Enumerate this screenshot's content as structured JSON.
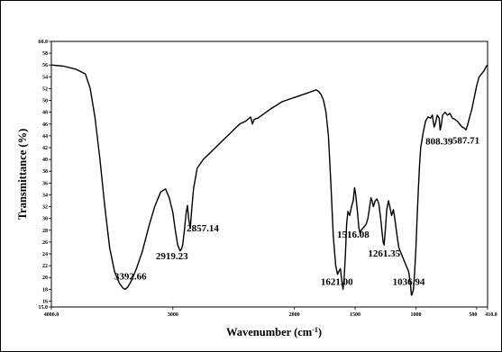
{
  "chart_data": {
    "type": "line",
    "title": "",
    "xlabel": "Wavenumber (cm",
    "xlabel_sup": "-1",
    "xlabel_close": ")",
    "ylabel": "Transmittance (%)",
    "xlim": [
      4000.0,
      410.0
    ],
    "ylim": [
      15.0,
      60.0
    ],
    "x_ticks": [
      {
        "value": 4000,
        "label": "4000.0"
      },
      {
        "value": 3000,
        "label": "3000"
      },
      {
        "value": 2000,
        "label": "2000"
      },
      {
        "value": 1500,
        "label": "1500"
      },
      {
        "value": 1000,
        "label": "1000"
      },
      {
        "value": 500,
        "label": "500"
      },
      {
        "value": 410,
        "label": "410.0"
      }
    ],
    "y_ticks": [
      {
        "value": 15,
        "label": "15.0"
      },
      {
        "value": 16,
        "label": "16"
      },
      {
        "value": 18,
        "label": "18"
      },
      {
        "value": 20,
        "label": "20"
      },
      {
        "value": 22,
        "label": "22"
      },
      {
        "value": 24,
        "label": "24"
      },
      {
        "value": 26,
        "label": "26"
      },
      {
        "value": 28,
        "label": "28"
      },
      {
        "value": 30,
        "label": "30"
      },
      {
        "value": 32,
        "label": "32"
      },
      {
        "value": 34,
        "label": "34"
      },
      {
        "value": 36,
        "label": "36"
      },
      {
        "value": 38,
        "label": "38"
      },
      {
        "value": 40,
        "label": "40"
      },
      {
        "value": 42,
        "label": "42"
      },
      {
        "value": 44,
        "label": "44"
      },
      {
        "value": 46,
        "label": "46"
      },
      {
        "value": 48,
        "label": "48"
      },
      {
        "value": 50,
        "label": "50"
      },
      {
        "value": 52,
        "label": "52"
      },
      {
        "value": 54,
        "label": "54"
      },
      {
        "value": 56,
        "label": "56"
      },
      {
        "value": 58,
        "label": "58"
      },
      {
        "value": 60,
        "label": "60.0"
      }
    ],
    "grid": false,
    "legend": "none",
    "line_color": "#000000",
    "series": [
      {
        "x": [
          4000,
          3900,
          3800,
          3720,
          3680,
          3640,
          3600,
          3560,
          3520,
          3480,
          3440,
          3410,
          3392.66,
          3370,
          3340,
          3300,
          3250,
          3200,
          3150,
          3100,
          3060,
          3030,
          3000,
          2980,
          2960,
          2940,
          2930,
          2919.23,
          2905,
          2890,
          2880,
          2870,
          2857.14,
          2845,
          2830,
          2800,
          2750,
          2700,
          2650,
          2600,
          2550,
          2500,
          2450,
          2400,
          2360,
          2345,
          2330,
          2300,
          2200,
          2100,
          2000,
          1900,
          1820,
          1800,
          1780,
          1760,
          1740,
          1720,
          1700,
          1680,
          1660,
          1645,
          1635,
          1621,
          1610,
          1600,
          1590,
          1580,
          1570,
          1560,
          1545,
          1530,
          1516.08,
          1505,
          1495,
          1480,
          1470,
          1460,
          1450,
          1430,
          1410,
          1395,
          1380,
          1370,
          1360,
          1350,
          1335,
          1320,
          1305,
          1290,
          1280,
          1270,
          1261.35,
          1250,
          1240,
          1225,
          1215,
          1200,
          1185,
          1170,
          1155,
          1140,
          1120,
          1100,
          1080,
          1060,
          1045,
          1036.94,
          1030,
          1020,
          1010,
          1000,
          990,
          980,
          970,
          960,
          940,
          920,
          900,
          880,
          865,
          850,
          840,
          825,
          808.39,
          800,
          790,
          780,
          760,
          740,
          720,
          700,
          680,
          660,
          640,
          620,
          600,
          587.71,
          575,
          560,
          540,
          520,
          500,
          480,
          460,
          440,
          420,
          410
        ],
        "y": [
          56.0,
          55.8,
          55.3,
          54.5,
          52.0,
          47.0,
          40.0,
          32.0,
          25.0,
          21.0,
          19.0,
          18.2,
          18.0,
          18.4,
          19.5,
          21.5,
          24.5,
          28.5,
          32.0,
          34.5,
          35.0,
          33.5,
          31.0,
          28.0,
          25.5,
          24.5,
          24.8,
          25.5,
          28.0,
          31.0,
          32.2,
          30.0,
          28.3,
          31.5,
          35.0,
          38.5,
          40.0,
          41.0,
          42.0,
          43.0,
          44.0,
          45.0,
          46.0,
          46.5,
          47.2,
          46.0,
          46.8,
          47.0,
          48.5,
          49.8,
          50.5,
          51.2,
          51.8,
          51.5,
          51.0,
          50.0,
          48.0,
          44.0,
          36.0,
          27.0,
          22.0,
          20.5,
          21.0,
          21.5,
          19.5,
          18.0,
          20.0,
          24.0,
          29.0,
          31.2,
          30.5,
          32.0,
          33.0,
          35.2,
          34.0,
          31.0,
          28.5,
          27.5,
          28.0,
          28.5,
          29.0,
          30.0,
          32.0,
          33.5,
          33.0,
          32.0,
          33.0,
          33.3,
          32.5,
          30.0,
          28.0,
          26.0,
          25.5,
          28.5,
          31.5,
          33.0,
          32.0,
          30.5,
          31.5,
          29.5,
          27.0,
          25.0,
          24.0,
          23.0,
          22.0,
          21.0,
          19.0,
          17.0,
          17.2,
          18.0,
          21.0,
          25.0,
          30.0,
          35.0,
          39.0,
          42.0,
          44.5,
          46.5,
          47.2,
          47.0,
          47.5,
          45.5,
          46.0,
          47.5,
          47.0,
          45.0,
          46.0,
          47.5,
          48.0,
          47.5,
          47.8,
          47.0,
          46.8,
          46.5,
          46.0,
          45.5,
          45.3,
          45.0,
          45.8,
          47.0,
          48.5,
          50.5,
          52.5,
          54.0,
          54.5,
          55.0,
          55.8,
          56.0
        ]
      }
    ],
    "annotations": [
      {
        "label": "3392.66",
        "x": 3392.66,
        "y": 18.0,
        "anchor": "start",
        "dx": -12,
        "dy": -11
      },
      {
        "label": "2919.23",
        "x": 2919.23,
        "y": 25.5,
        "anchor": "middle",
        "dx": -12,
        "dy": 16
      },
      {
        "label": "2857.14",
        "x": 2857.14,
        "y": 28.3,
        "anchor": "start",
        "dx": -4,
        "dy": 3
      },
      {
        "label": "1621.00",
        "x": 1621.0,
        "y": 18.0,
        "anchor": "middle",
        "dx": -4,
        "dy": -5
      },
      {
        "label": "1516.08",
        "x": 1516.08,
        "y": 27.5,
        "anchor": "middle",
        "dx": 0,
        "dy": 5
      },
      {
        "label": "1261.35",
        "x": 1261.35,
        "y": 25.5,
        "anchor": "middle",
        "dx": 0,
        "dy": 13
      },
      {
        "label": "1036.94",
        "x": 1036.94,
        "y": 17.2,
        "anchor": "middle",
        "dx": -3,
        "dy": -10
      },
      {
        "label": "808.39",
        "x": 808.39,
        "y": 45.0,
        "anchor": "middle",
        "dx": 0,
        "dy": 16
      },
      {
        "label": "587.71",
        "x": 587.71,
        "y": 45.0,
        "anchor": "middle",
        "dx": 0,
        "dy": 15
      }
    ]
  }
}
